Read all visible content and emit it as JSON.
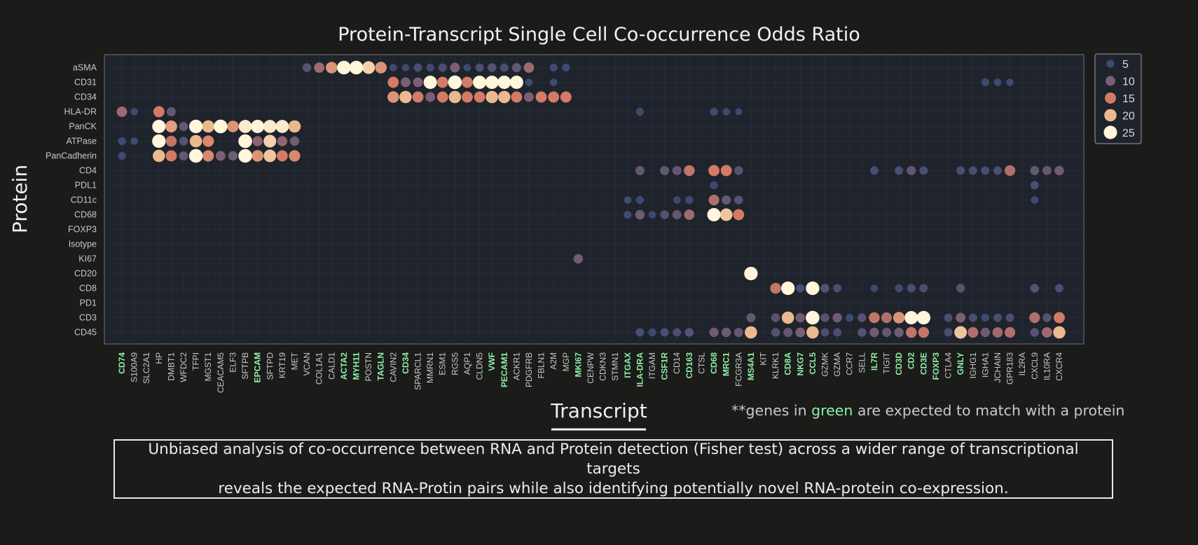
{
  "chart_data": {
    "type": "dot-plot",
    "title": "Protein-Transcript Single Cell Co-occurrence Odds Ratio",
    "xlabel": "Transcript",
    "ylabel": "Protein",
    "proteins": [
      "aSMA",
      "CD31",
      "CD34",
      "HLA-DR",
      "PanCK",
      "ATPase",
      "PanCadherin",
      "CD4",
      "PDL1",
      "CD11c",
      "CD68",
      "FOXP3",
      "Isotype",
      "KI67",
      "CD20",
      "CD8",
      "PD1",
      "CD3",
      "CD45"
    ],
    "transcripts": [
      "CD74",
      "S100A9",
      "SLC2A1",
      "HP",
      "DMBT1",
      "WFDC2",
      "TFPI",
      "MGST1",
      "CEACAM5",
      "ELF3",
      "SFTPB",
      "EPCAM",
      "SFTPD",
      "KRT19",
      "MET",
      "VCAN",
      "COL1A1",
      "CALD1",
      "ACTA2",
      "MYH11",
      "POSTN",
      "TAGLN",
      "CAVIN2",
      "CD34",
      "SPARCL1",
      "MMRN1",
      "ESM1",
      "RGS5",
      "AQP1",
      "CLDN5",
      "VWF",
      "PECAM1",
      "ACKR1",
      "PDGFRB",
      "FBLN1",
      "A2M",
      "MGP",
      "MKI67",
      "CENPW",
      "CDKN3",
      "STMN1",
      "ITGAX",
      "ILA-DRA",
      "ITGAM",
      "CSF1R",
      "CD14",
      "CD163",
      "CTSL",
      "CD68",
      "MRC1",
      "FCGR3A",
      "MS4A1",
      "KIT",
      "KLRK1",
      "CD8A",
      "NKG7",
      "CCL5",
      "GZMK",
      "GZMA",
      "CCR7",
      "SELL",
      "IL7R",
      "TIGIT",
      "CD3D",
      "CD2",
      "CD3E",
      "FOXP3",
      "CTLA4",
      "GNLY",
      "IGHG1",
      "IGHA1",
      "JCHAIN",
      "GPR183",
      "IL2RA",
      "CXCL9",
      "IL10RA",
      "CXCR4"
    ],
    "highlighted_transcripts": [
      "CD74",
      "EPCAM",
      "ACTA2",
      "MYH11",
      "TAGLN",
      "CD34",
      "VWF",
      "PECAM1",
      "MKI67",
      "ITGAX",
      "ILA-DRA",
      "CSF1R",
      "CD163",
      "CD68",
      "MRC1",
      "MS4A1",
      "CD8A",
      "NKG7",
      "CCL5",
      "IL7R",
      "CD3D",
      "CD2",
      "CD3E",
      "FOXP3",
      "GNLY"
    ],
    "legend": {
      "title": "",
      "values": [
        5,
        10,
        15,
        20,
        25
      ],
      "position": "top-right"
    },
    "color_scale": {
      "low": "#3d4a72",
      "mid_low": "#7c5f75",
      "mid": "#d47a66",
      "mid_high": "#ebb98e",
      "high": "#fff6dc"
    },
    "values": {
      "aSMA": {
        "VCAN": 7,
        "COL1A1": 12,
        "CALD1": 17,
        "ACTA2": 27,
        "MYH11": 27,
        "POSTN": 22,
        "TAGLN": 17,
        "CAVIN2": 4,
        "CD34": 4,
        "SPARCL1": 6,
        "MMRN1": 5,
        "ESM1": 6,
        "RGS5": 10,
        "AQP1": 4,
        "CLDN5": 6,
        "VWF": 7,
        "PECAM1": 6,
        "ACKR1": 8,
        "PDGFRB": 12,
        "A2M": 5,
        "MGP": 5
      },
      "CD31": {
        "CAVIN2": 15,
        "CD34": 10,
        "SPARCL1": 10,
        "MMRN1": 25,
        "ESM1": 15,
        "RGS5": 27,
        "AQP1": 15,
        "CLDN5": 25,
        "VWF": 25,
        "PECAM1": 25,
        "ACKR1": 25,
        "PDGFRB": 4,
        "A2M": 4,
        "IGHA1": 5,
        "JCHAIN": 4,
        "GPR183": 4
      },
      "CD34": {
        "CAVIN2": 17,
        "CD34": 20,
        "SPARCL1": 15,
        "MMRN1": 10,
        "ESM1": 15,
        "RGS5": 20,
        "AQP1": 15,
        "CLDN5": 15,
        "VWF": 20,
        "PECAM1": 20,
        "ACKR1": 15,
        "PDGFRB": 10,
        "FBLN1": 15,
        "A2M": 15,
        "MGP": 15
      },
      "HLA-DR": {
        "CD74": 12,
        "S100A9": 4,
        "HP": 15,
        "DMBT1": 8,
        "ILA-DRA": 5,
        "CD68": 5,
        "MRC1": 4,
        "FCGR3A": 3
      },
      "PanCK": {
        "HP": 25,
        "DMBT1": 18,
        "WFDC2": 8,
        "TFPI": 26,
        "MGST1": 20,
        "CEACAM5": 27,
        "ELF3": 17,
        "SFTPB": 24,
        "EPCAM": 25,
        "SFTPD": 24,
        "KRT19": 24,
        "MET": 20
      },
      "ATPase": {
        "CD74": 5,
        "S100A9": 4,
        "HP": 26,
        "DMBT1": 14,
        "WFDC2": 7,
        "TFPI": 20,
        "MGST1": 16,
        "SFTPB": 27,
        "EPCAM": 11,
        "SFTPD": 22,
        "KRT19": 11,
        "MET": 9
      },
      "PanCadherin": {
        "CD74": 5,
        "HP": 20,
        "DMBT1": 15,
        "WFDC2": 8,
        "TFPI": 27,
        "MGST1": 16,
        "CEACAM5": 10,
        "ELF3": 9,
        "SFTPB": 27,
        "EPCAM": 17,
        "SFTPD": 21,
        "KRT19": 15,
        "MET": 16
      },
      "CD4": {
        "ILA-DRA": 8,
        "CSF1R": 8,
        "CD14": 8,
        "CD163": 14,
        "CD68": 15,
        "MRC1": 15,
        "FCGR3A": 7,
        "IL7R": 6,
        "CD3D": 6,
        "CD2": 8,
        "CD3E": 6,
        "GNLY": 6,
        "IGHG1": 6,
        "IGHA1": 6,
        "JCHAIN": 6,
        "GPR183": 13,
        "CXCL9": 8,
        "IL10RA": 8,
        "CXCR4": 9
      },
      "PDL1": {
        "CD68": 5,
        "CXCL9": 6
      },
      "CD11c": {
        "ITGAX": 4,
        "ILA-DRA": 5,
        "CD14": 4,
        "CD163": 5,
        "CD68": 13,
        "MRC1": 8,
        "FCGR3A": 7,
        "CXCL9": 4
      },
      "CD68": {
        "ITGAX": 5,
        "ILA-DRA": 9,
        "ITGAM": 4,
        "CSF1R": 7,
        "CD14": 8,
        "CD163": 12,
        "CD68": 25,
        "MRC1": 21,
        "FCGR3A": 15
      },
      "KI67": {
        "MKI67": 9
      },
      "CD20": {
        "MS4A1": 26
      },
      "CD8": {
        "KLRK1": 14,
        "CD8A": 26,
        "NKG7": 6,
        "CCL5": 26,
        "GZMK": 7,
        "GZMA": 6,
        "IL7R": 4,
        "CD3D": 5,
        "CD2": 6,
        "CD3E": 6,
        "GNLY": 7,
        "CXCL9": 7,
        "CXCR4": 6
      },
      "CD3": {
        "MS4A1": 8,
        "KLRK1": 7,
        "CD8A": 20,
        "NKG7": 9,
        "CCL5": 27,
        "GZMK": 7,
        "GZMA": 9,
        "CCR7": 5,
        "SELL": 7,
        "IL7R": 14,
        "TIGIT": 13,
        "CD3D": 17,
        "CD2": 25,
        "CD3E": 26,
        "CTLA4": 6,
        "GNLY": 10,
        "IGHG1": 6,
        "IGHA1": 5,
        "JCHAIN": 6,
        "GPR183": 6,
        "CXCL9": 13,
        "IL10RA": 7,
        "CXCR4": 15
      },
      "CD45": {
        "ILA-DRA": 6,
        "ITGAM": 5,
        "CSF1R": 6,
        "CD14": 6,
        "CD163": 7,
        "CD68": 9,
        "MRC1": 9,
        "FCGR3A": 8,
        "MS4A1": 20,
        "KLRK1": 7,
        "CD8A": 8,
        "NKG7": 10,
        "CCL5": 20,
        "GZMK": 6,
        "GZMA": 6,
        "SELL": 7,
        "IL7R": 9,
        "TIGIT": 8,
        "CD3D": 9,
        "CD2": 14,
        "CD3E": 14,
        "CTLA4": 6,
        "GNLY": 21,
        "IGHG1": 13,
        "IGHA1": 9,
        "JCHAIN": 12,
        "GPR183": 13,
        "CXCL9": 7,
        "IL10RA": 12,
        "CXCR4": 20
      }
    }
  },
  "note": {
    "prefix": "**genes in ",
    "green": "green",
    "suffix": " are expected to match with a protein"
  },
  "caption": {
    "line1": "Unbiased analysis of co-occurrence between RNA and Protein detection (Fisher test) across a wider range of transcriptional targets",
    "line2": "reveals the expected RNA-Protin pairs while also identifying potentially novel RNA-protein co-expression."
  }
}
